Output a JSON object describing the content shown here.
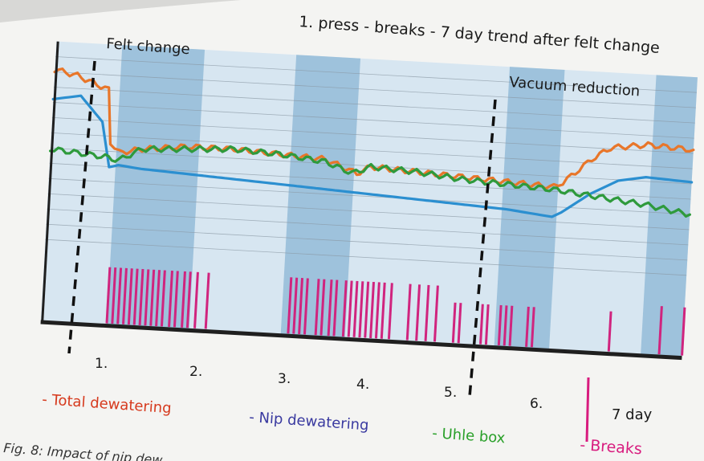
{
  "chart_data": {
    "type": "line",
    "title": "1. press - breaks - 7 day trend after felt change",
    "annotations": [
      "Felt change",
      "Vacuum reduction"
    ],
    "day_labels": [
      "1.",
      "2.",
      "3.",
      "4.",
      "5.",
      "6.",
      "7 day"
    ],
    "x_range": [
      0,
      7
    ],
    "grid": "horizontal",
    "legend": [
      {
        "label": "- Total dewatering",
        "color": "#d63a1e"
      },
      {
        "label": "- Nip dewatering",
        "color": "#3a3aa0"
      },
      {
        "label": "- Uhle box",
        "color": "#2aa02a"
      },
      {
        "label": "- Breaks",
        "color": "#d81b7e"
      }
    ],
    "series": [
      {
        "key": "total",
        "color": "#e8762a",
        "x": [
          0.0,
          0.25,
          0.6,
          0.65,
          0.75,
          1.0,
          1.5,
          2.0,
          2.5,
          3.0,
          3.35,
          3.5,
          4.0,
          4.5,
          5.0,
          5.5,
          5.6,
          5.9,
          6.1,
          6.5,
          7.0
        ],
        "y": [
          72,
          70,
          65,
          44,
          40,
          42,
          44,
          44,
          43,
          42,
          37,
          40,
          39,
          38,
          37,
          36,
          38,
          48,
          53,
          55,
          54
        ]
      },
      {
        "key": "nip",
        "color": "#2b8fd0",
        "x": [
          0.0,
          0.3,
          0.55,
          0.65,
          0.75,
          1.0,
          1.5,
          2.0,
          2.5,
          3.0,
          3.5,
          4.0,
          4.5,
          5.0,
          5.5,
          5.6,
          5.9,
          6.2,
          6.5,
          7.0
        ],
        "y": [
          60,
          62,
          52,
          34,
          35,
          34,
          33,
          32,
          31,
          30,
          29,
          28,
          27,
          26,
          24,
          26,
          34,
          40,
          42,
          41
        ]
      },
      {
        "key": "uhle",
        "color": "#2e9a3c",
        "x": [
          0.0,
          0.6,
          0.75,
          1.0,
          1.5,
          2.0,
          2.5,
          3.0,
          3.3,
          3.5,
          4.0,
          4.5,
          5.0,
          5.5,
          6.0,
          6.5,
          7.0
        ],
        "y": [
          40,
          38,
          37,
          42,
          43,
          44,
          43,
          41,
          37,
          40,
          39,
          37,
          36,
          35,
          33,
          31,
          28
        ]
      }
    ],
    "breaks": [
      0.72,
      0.78,
      0.84,
      0.9,
      0.96,
      1.02,
      1.08,
      1.14,
      1.2,
      1.26,
      1.32,
      1.4,
      1.46,
      1.54,
      1.6,
      1.68,
      1.8,
      2.7,
      2.76,
      2.82,
      2.88,
      3.0,
      3.06,
      3.14,
      3.2,
      3.3,
      3.36,
      3.42,
      3.48,
      3.54,
      3.6,
      3.66,
      3.72,
      3.8,
      4.0,
      4.1,
      4.2,
      4.3,
      4.5,
      4.56,
      4.8,
      4.86,
      5.0,
      5.06,
      5.12,
      5.3,
      5.36,
      6.2,
      6.75,
      7.0,
      7.3
    ]
  },
  "caption": "Fig. 8: Impact of nip dew"
}
